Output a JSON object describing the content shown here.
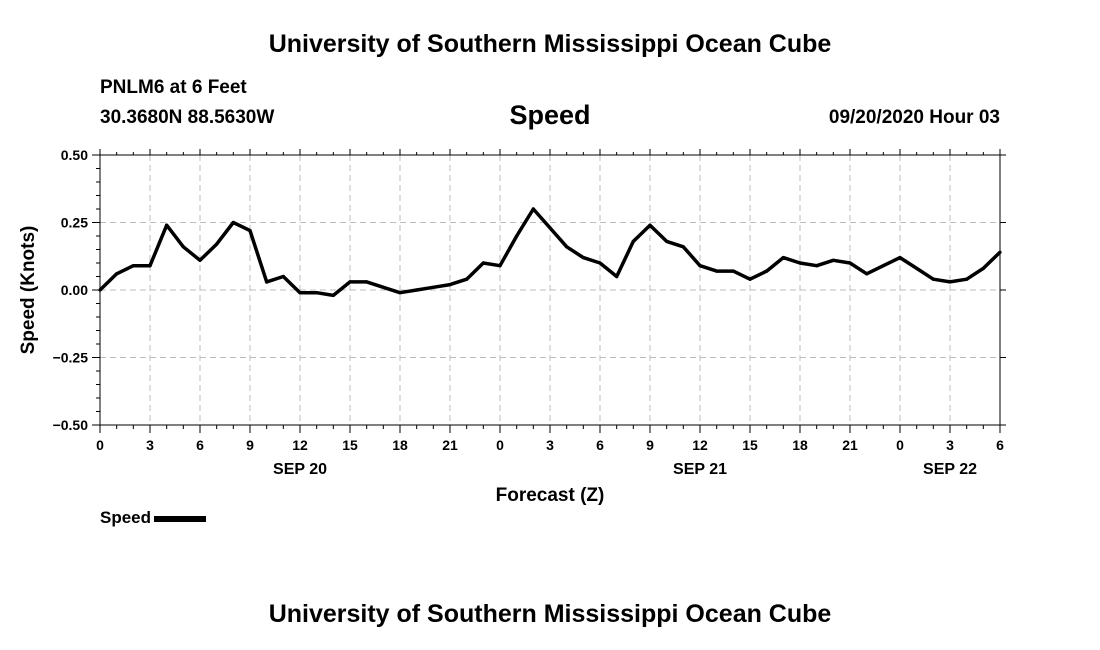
{
  "header": {
    "title": "University of Southern Mississippi Ocean Cube",
    "station": "PNLM6 at 6 Feet",
    "location": "30.3680N 88.5630W",
    "variable": "Speed",
    "datetime": "09/20/2020 Hour 03"
  },
  "footer": {
    "title": "University of Southern Mississippi Ocean Cube"
  },
  "legend": {
    "label": "Speed",
    "color": "#000000"
  },
  "chart_data": {
    "type": "line",
    "title": "Speed",
    "xlabel": "Forecast (Z)",
    "ylabel": "Speed (Knots)",
    "ylim": [
      -0.5,
      0.5
    ],
    "xlim": [
      0,
      54
    ],
    "yticks": [
      "0.50",
      "0.25",
      "0.00",
      "−0.25",
      "−0.50"
    ],
    "xticks": [
      "0",
      "3",
      "6",
      "9",
      "12",
      "15",
      "18",
      "21",
      "0",
      "3",
      "6",
      "9",
      "12",
      "15",
      "18",
      "21",
      "0",
      "3",
      "6"
    ],
    "date_labels": [
      {
        "label": "SEP 20",
        "hour_index": 12
      },
      {
        "label": "SEP 21",
        "hour_index": 36
      },
      {
        "label": "SEP 22",
        "hour_index": 51
      }
    ],
    "grid": true,
    "series": [
      {
        "name": "Speed",
        "color": "#000000",
        "x": [
          0,
          1,
          2,
          3,
          4,
          5,
          6,
          7,
          8,
          9,
          10,
          11,
          12,
          13,
          14,
          15,
          16,
          17,
          18,
          19,
          20,
          21,
          22,
          23,
          24,
          25,
          26,
          27,
          28,
          29,
          30,
          31,
          32,
          33,
          34,
          35,
          36,
          37,
          38,
          39,
          40,
          41,
          42,
          43,
          44,
          45,
          46,
          47,
          48,
          49,
          50,
          51,
          52,
          53,
          54
        ],
        "values": [
          0.0,
          0.06,
          0.09,
          0.09,
          0.24,
          0.16,
          0.11,
          0.17,
          0.25,
          0.22,
          0.03,
          0.05,
          -0.01,
          -0.01,
          -0.02,
          0.03,
          0.03,
          0.01,
          -0.01,
          0.0,
          0.01,
          0.02,
          0.04,
          0.1,
          0.09,
          0.2,
          0.3,
          0.23,
          0.16,
          0.12,
          0.1,
          0.05,
          0.18,
          0.24,
          0.18,
          0.16,
          0.09,
          0.07,
          0.07,
          0.04,
          0.07,
          0.12,
          0.1,
          0.09,
          0.11,
          0.1,
          0.06,
          0.09,
          0.12,
          0.08,
          0.04,
          0.03,
          0.04,
          0.08,
          0.14
        ]
      }
    ]
  }
}
